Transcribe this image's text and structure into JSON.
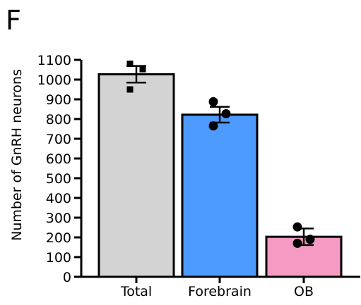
{
  "chart_data": {
    "type": "bar",
    "panel_label": "F",
    "title": "",
    "xlabel": "",
    "ylabel": "Number of GnRH neurons",
    "ylim": [
      0,
      1100
    ],
    "yticks": [
      0,
      100,
      200,
      300,
      400,
      500,
      600,
      700,
      800,
      900,
      1000,
      1100
    ],
    "grid": false,
    "categories": [
      "Total",
      "Forebrain",
      "OB"
    ],
    "values": [
      1027,
      822,
      203
    ],
    "error": [
      42,
      40,
      42
    ],
    "colors": [
      "#d3d3d3",
      "#4d9bff",
      "#f59bc3"
    ],
    "points": [
      {
        "category": "Total",
        "marker": "square",
        "values": [
          1080,
          1053,
          950
        ]
      },
      {
        "category": "Forebrain",
        "marker": "circle",
        "values": [
          888,
          827,
          765
        ]
      },
      {
        "category": "OB",
        "marker": "circle",
        "values": [
          253,
          190,
          170
        ]
      }
    ]
  }
}
